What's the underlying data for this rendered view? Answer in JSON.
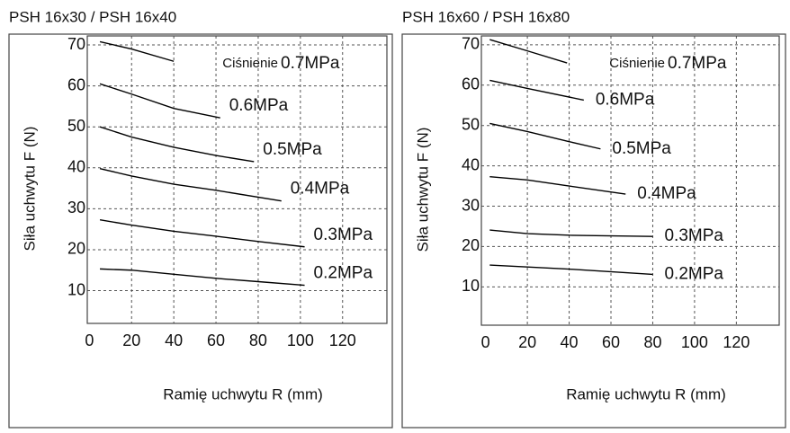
{
  "chart_data": [
    {
      "type": "line",
      "title": "PSH 16x30 / PSH 16x40",
      "x_label": "Ramię uchwytu R (mm)",
      "y_label": "Siła uchwytu  F (N)",
      "pressure_label": "Ciśnienie",
      "xlim": [
        -1,
        141
      ],
      "ylim": [
        2,
        72.2
      ],
      "xticks": [
        0,
        20,
        40,
        60,
        80,
        100,
        120
      ],
      "yticks": [
        10,
        20,
        30,
        40,
        50,
        60,
        70
      ],
      "grid": true,
      "series": [
        {
          "name": "0.7MPa",
          "color": "#000000",
          "x": [
            5,
            20,
            40
          ],
          "values": [
            70.8,
            69,
            66
          ]
        },
        {
          "name": "0.6MPa",
          "color": "#000000",
          "x": [
            5,
            20,
            40,
            62
          ],
          "values": [
            60.5,
            58,
            54.5,
            52.2
          ]
        },
        {
          "name": "0.5MPa",
          "color": "#000000",
          "x": [
            5,
            20,
            40,
            60,
            78
          ],
          "values": [
            50,
            47.5,
            45,
            43,
            41.5
          ]
        },
        {
          "name": "0.4MPa",
          "color": "#000000",
          "x": [
            5,
            20,
            40,
            60,
            91
          ],
          "values": [
            39.8,
            38,
            36,
            34.5,
            31.9
          ]
        },
        {
          "name": "0.3MPa",
          "color": "#000000",
          "x": [
            5,
            20,
            40,
            60,
            80,
            102
          ],
          "values": [
            27.3,
            26,
            24.5,
            23.3,
            22,
            20.7
          ]
        },
        {
          "name": "0.2MPa",
          "color": "#000000",
          "x": [
            5,
            20,
            40,
            60,
            80,
            102
          ],
          "values": [
            15.3,
            15,
            14,
            13,
            12.2,
            11.3
          ]
        }
      ]
    },
    {
      "type": "line",
      "title": "PSH 16x60 / PSH 16x80",
      "x_label": "Ramię uchwytu R (mm)",
      "y_label": "Siła uchwytu  F (N)",
      "pressure_label": "Ciśnienie",
      "xlim": [
        -2,
        140.5
      ],
      "ylim": [
        0.5,
        72.2
      ],
      "xticks": [
        0,
        20,
        40,
        60,
        80,
        100,
        120
      ],
      "yticks": [
        10,
        20,
        30,
        40,
        50,
        60,
        70
      ],
      "grid": true,
      "series": [
        {
          "name": "0.7MPa",
          "color": "#000000",
          "x": [
            2,
            20,
            39
          ],
          "values": [
            71.3,
            68.5,
            65.5
          ]
        },
        {
          "name": "0.6MPa",
          "color": "#000000",
          "x": [
            2,
            20,
            47
          ],
          "values": [
            61.2,
            59.2,
            56.3
          ]
        },
        {
          "name": "0.5MPa",
          "color": "#000000",
          "x": [
            2,
            20,
            40,
            55
          ],
          "values": [
            50.5,
            48.5,
            46,
            44.2
          ]
        },
        {
          "name": "0.4MPa",
          "color": "#000000",
          "x": [
            2,
            20,
            40,
            67
          ],
          "values": [
            37.3,
            36.5,
            35,
            33
          ]
        },
        {
          "name": "0.3MPa",
          "color": "#000000",
          "x": [
            2,
            20,
            40,
            80
          ],
          "values": [
            24.1,
            23.2,
            22.8,
            22.5
          ]
        },
        {
          "name": "0.2MPa",
          "color": "#000000",
          "x": [
            2,
            40,
            80
          ],
          "values": [
            15.4,
            14.4,
            13.1
          ]
        }
      ]
    }
  ]
}
